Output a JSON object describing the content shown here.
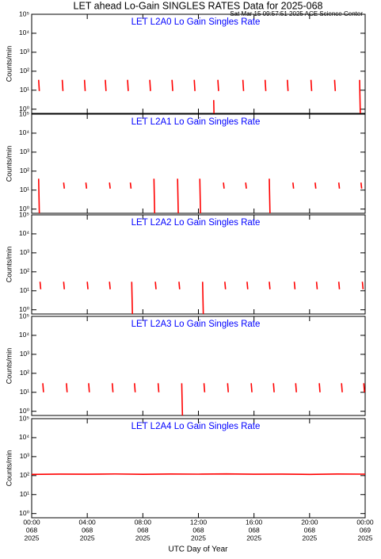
{
  "title": "LET ahead Lo-Gain SINGLES RATES Data for 2025-068",
  "timestamp": "Sat Mar 15 09:57:51 2025 ACE Science Center",
  "xlabel": "UTC Day of Year",
  "chart_data": [
    {
      "type": "line",
      "title": "LET L2A0 Lo Gain Singles Rate",
      "ylabel": "Counts/min",
      "color": "#ff0000",
      "log_y": true,
      "xlim": [
        0,
        24
      ],
      "ylim": [
        0.6,
        100000
      ],
      "yticks": [
        {
          "value": 1,
          "label": "10⁰"
        },
        {
          "value": 10,
          "label": "10¹"
        },
        {
          "value": 100,
          "label": "10²"
        },
        {
          "value": 1000,
          "label": "10³"
        },
        {
          "value": 10000,
          "label": "10⁴"
        },
        {
          "value": 100000,
          "label": "10⁵"
        }
      ],
      "x": [
        0.5,
        0.55,
        0.6,
        2.2,
        2.25,
        2.3,
        3.8,
        3.85,
        3.9,
        5.3,
        5.35,
        5.4,
        6.9,
        6.95,
        7.0,
        8.5,
        8.55,
        8.6,
        10.1,
        10.15,
        10.2,
        11.7,
        11.75,
        11.8,
        13.1,
        13.12,
        13.14,
        13.4,
        13.45,
        13.5,
        15.2,
        15.25,
        15.3,
        16.8,
        16.85,
        16.9,
        18.4,
        18.45,
        18.5,
        20.1,
        20.15,
        20.2,
        21.8,
        21.85,
        21.9,
        23.6,
        23.65,
        23.7
      ],
      "values": [
        35,
        9,
        null,
        35,
        9,
        null,
        35,
        9,
        null,
        35,
        9,
        null,
        35,
        9,
        null,
        35,
        9,
        null,
        35,
        9,
        null,
        35,
        9,
        null,
        3,
        0.6,
        null,
        35,
        9,
        null,
        35,
        9,
        null,
        35,
        9,
        null,
        35,
        9,
        null,
        35,
        9,
        null,
        35,
        9,
        null,
        35,
        0.6,
        null
      ]
    },
    {
      "type": "line",
      "title": "LET L2A1 Lo Gain Singles Rate",
      "ylabel": "Counts/min",
      "color": "#ff0000",
      "log_y": true,
      "xlim": [
        0,
        24
      ],
      "ylim": [
        0.6,
        100000
      ],
      "yticks": [
        {
          "value": 1,
          "label": "10⁰"
        },
        {
          "value": 10,
          "label": "10¹"
        },
        {
          "value": 100,
          "label": "10²"
        },
        {
          "value": 1000,
          "label": "10³"
        },
        {
          "value": 10000,
          "label": "10⁴"
        },
        {
          "value": 100000,
          "label": "10⁵"
        }
      ],
      "x": [
        0.5,
        0.55,
        0.6,
        2.3,
        2.35,
        2.4,
        3.9,
        3.95,
        4.0,
        5.6,
        5.65,
        5.7,
        7.1,
        7.15,
        7.2,
        8.8,
        8.85,
        8.9,
        10.5,
        10.55,
        10.6,
        12.1,
        12.15,
        12.2,
        13.8,
        13.85,
        13.9,
        15.4,
        15.45,
        15.5,
        17.1,
        17.15,
        17.2,
        18.8,
        18.85,
        18.9,
        20.4,
        20.45,
        20.5,
        22.1,
        22.15,
        22.2,
        23.7,
        23.75,
        23.8
      ],
      "values": [
        40,
        0.6,
        null,
        25,
        12,
        null,
        25,
        12,
        null,
        25,
        12,
        null,
        25,
        12,
        null,
        40,
        0.6,
        null,
        40,
        0.6,
        null,
        40,
        0.6,
        null,
        25,
        12,
        null,
        25,
        12,
        null,
        40,
        0.6,
        null,
        25,
        12,
        null,
        25,
        12,
        null,
        25,
        12,
        null,
        25,
        12,
        null
      ]
    },
    {
      "type": "line",
      "title": "LET L2A2 Lo Gain Singles Rate",
      "ylabel": "Counts/min",
      "color": "#ff0000",
      "log_y": true,
      "xlim": [
        0,
        24
      ],
      "ylim": [
        0.6,
        100000
      ],
      "yticks": [
        {
          "value": 1,
          "label": "10⁰"
        },
        {
          "value": 10,
          "label": "10¹"
        },
        {
          "value": 100,
          "label": "10²"
        },
        {
          "value": 1000,
          "label": "10³"
        },
        {
          "value": 10000,
          "label": "10⁴"
        },
        {
          "value": 100000,
          "label": "10⁵"
        }
      ],
      "x": [
        0.6,
        0.65,
        0.7,
        2.3,
        2.35,
        2.4,
        4.0,
        4.05,
        4.1,
        5.6,
        5.65,
        5.7,
        7.2,
        7.25,
        7.3,
        8.9,
        8.95,
        9.0,
        10.6,
        10.65,
        10.7,
        12.3,
        12.35,
        12.4,
        13.9,
        13.95,
        14.0,
        15.5,
        15.55,
        15.6,
        17.1,
        17.15,
        17.2,
        18.9,
        18.95,
        19.0,
        20.5,
        20.55,
        20.6,
        22.1,
        22.15,
        22.2,
        23.8,
        23.85,
        23.9
      ],
      "values": [
        30,
        12,
        null,
        30,
        12,
        null,
        30,
        12,
        null,
        30,
        12,
        null,
        30,
        0.6,
        null,
        30,
        12,
        null,
        30,
        12,
        null,
        30,
        0.6,
        null,
        30,
        12,
        null,
        30,
        12,
        null,
        30,
        12,
        null,
        30,
        12,
        null,
        30,
        12,
        null,
        30,
        12,
        null,
        30,
        12,
        null
      ]
    },
    {
      "type": "line",
      "title": "LET L2A3 Lo Gain Singles Rate",
      "ylabel": "Counts/min",
      "color": "#ff0000",
      "log_y": true,
      "xlim": [
        0,
        24
      ],
      "ylim": [
        0.6,
        100000
      ],
      "yticks": [
        {
          "value": 1,
          "label": "10⁰"
        },
        {
          "value": 10,
          "label": "10¹"
        },
        {
          "value": 100,
          "label": "10²"
        },
        {
          "value": 1000,
          "label": "10³"
        },
        {
          "value": 10000,
          "label": "10⁴"
        },
        {
          "value": 100000,
          "label": "10⁵"
        }
      ],
      "x": [
        0.8,
        0.85,
        0.9,
        2.5,
        2.55,
        2.6,
        4.1,
        4.15,
        4.2,
        5.8,
        5.85,
        5.9,
        7.4,
        7.45,
        7.5,
        9.1,
        9.15,
        9.2,
        10.8,
        10.85,
        10.9,
        12.4,
        12.45,
        12.5,
        14.1,
        14.15,
        14.2,
        15.8,
        15.85,
        15.9,
        17.4,
        17.45,
        17.5,
        19.0,
        19.05,
        19.1,
        20.7,
        20.75,
        20.8,
        22.3,
        22.35,
        22.4,
        23.9,
        23.95,
        24.0
      ],
      "values": [
        30,
        10,
        null,
        30,
        10,
        null,
        30,
        10,
        null,
        30,
        10,
        null,
        30,
        10,
        null,
        30,
        10,
        null,
        30,
        0.6,
        null,
        30,
        10,
        null,
        30,
        10,
        null,
        30,
        10,
        null,
        30,
        10,
        null,
        30,
        10,
        null,
        30,
        10,
        null,
        30,
        10,
        null,
        30,
        10,
        null
      ]
    },
    {
      "type": "line",
      "title": "LET L2A4 Lo Gain Singles Rate",
      "ylabel": "Counts/min",
      "color": "#ff0000",
      "log_y": true,
      "xlim": [
        0,
        24
      ],
      "ylim": [
        0.6,
        100000
      ],
      "yticks": [
        {
          "value": 1,
          "label": "10⁰"
        },
        {
          "value": 10,
          "label": "10¹"
        },
        {
          "value": 100,
          "label": "10²"
        },
        {
          "value": 1000,
          "label": "10³"
        },
        {
          "value": 10000,
          "label": "10⁴"
        },
        {
          "value": 100000,
          "label": "10⁵"
        }
      ],
      "xticks": [
        {
          "value": 0,
          "label": "00:00",
          "day": "068",
          "year": "2025"
        },
        {
          "value": 4,
          "label": "04:00",
          "day": "068",
          "year": "2025"
        },
        {
          "value": 8,
          "label": "08:00",
          "day": "068",
          "year": "2025"
        },
        {
          "value": 12,
          "label": "12:00",
          "day": "068",
          "year": "2025"
        },
        {
          "value": 16,
          "label": "16:00",
          "day": "068",
          "year": "2025"
        },
        {
          "value": 20,
          "label": "20:00",
          "day": "068",
          "year": "2025"
        },
        {
          "value": 24,
          "label": "00:00",
          "day": "069",
          "year": "2025"
        }
      ],
      "x": [
        0,
        2,
        4,
        6,
        8,
        10,
        12,
        14,
        16,
        18,
        20,
        22,
        24
      ],
      "values": [
        115,
        120,
        118,
        122,
        117,
        121,
        119,
        123,
        118,
        120,
        116,
        121,
        119
      ]
    }
  ]
}
